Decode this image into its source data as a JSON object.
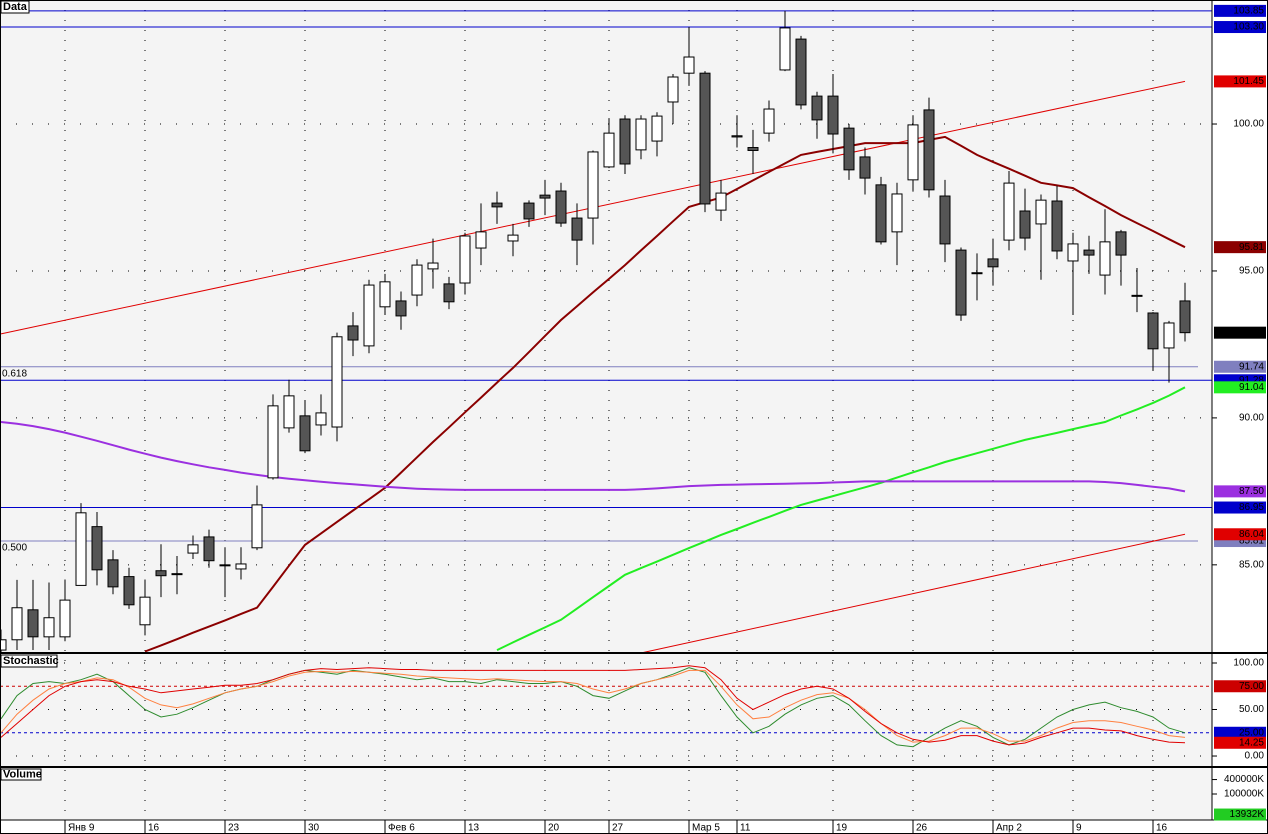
{
  "chart_data": [
    {
      "type": "candlestick",
      "title": "Data",
      "categories": [
        null,
        null,
        null,
        null,
        "Янв 9",
        null,
        null,
        null,
        null,
        "16",
        null,
        null,
        null,
        null,
        "23",
        null,
        null,
        null,
        null,
        "30",
        null,
        null,
        null,
        null,
        "Фев 6",
        null,
        null,
        null,
        null,
        "13",
        null,
        null,
        null,
        null,
        "20",
        null,
        null,
        null,
        "27",
        null,
        null,
        null,
        null,
        "Мар 5",
        null,
        null,
        "11",
        null,
        null,
        null,
        null,
        null,
        "19",
        null,
        null,
        null,
        null,
        "26",
        null,
        null,
        null,
        null,
        "Апр 2",
        null,
        null,
        null,
        null,
        "9",
        null,
        null,
        null,
        null,
        "16",
        null,
        null
      ],
      "open": [
        82.1,
        82.45,
        83.47,
        82.55,
        82.55,
        84.3,
        86.3,
        85.17,
        84.6,
        82.96,
        84.8,
        84.7,
        85.4,
        85.95,
        85.0,
        84.86,
        85.58,
        87.96,
        89.66,
        90.07,
        89.76,
        89.69,
        93.13,
        92.45,
        93.78,
        93.98,
        94.18,
        95.07,
        94.56,
        94.59,
        95.78,
        97.31,
        96.02,
        97.31,
        97.58,
        97.72,
        96.8,
        96.8,
        98.54,
        100.17,
        99.12,
        99.42,
        100.75,
        101.73,
        101.73,
        97.07,
        99.6,
        99.2,
        99.69,
        101.84,
        102.89,
        100.95,
        100.95,
        99.86,
        98.88,
        97.93,
        96.33,
        98.1,
        100.48,
        97.55,
        95.71,
        94.94,
        95.41,
        96.05,
        97.04,
        96.6,
        97.38,
        95.34,
        95.71,
        94.86,
        96.33,
        94.17,
        93.57,
        92.38,
        93.98
      ],
      "high": [
        82.8,
        84.49,
        84.49,
        84.4,
        84.5,
        87.1,
        86.8,
        85.5,
        84.9,
        84.5,
        85.7,
        85.3,
        86.0,
        86.2,
        85.6,
        85.6,
        87.7,
        90.8,
        91.3,
        90.6,
        90.8,
        92.9,
        93.6,
        94.7,
        94.9,
        94.3,
        95.4,
        96.1,
        94.8,
        96.3,
        97.3,
        97.7,
        96.6,
        97.4,
        98.1,
        98.0,
        97.3,
        99.1,
        100.2,
        100.3,
        100.3,
        100.4,
        101.7,
        103.3,
        101.8,
        98.1,
        100.3,
        99.8,
        100.8,
        103.85,
        103.0,
        101.1,
        101.7,
        100.0,
        99.2,
        98.2,
        98.0,
        100.3,
        100.9,
        98.1,
        95.8,
        95.6,
        96.1,
        98.4,
        97.8,
        97.6,
        97.9,
        96.3,
        96.2,
        97.1,
        96.4,
        95.1,
        93.6,
        93.3,
        94.6
      ],
      "low": [
        82.0,
        82.1,
        82.1,
        82.1,
        82.4,
        84.3,
        84.3,
        84.0,
        83.5,
        82.6,
        83.9,
        84.0,
        85.2,
        84.9,
        83.9,
        84.5,
        85.5,
        87.9,
        89.5,
        88.8,
        89.4,
        89.2,
        92.1,
        92.2,
        93.5,
        93.0,
        93.8,
        94.4,
        93.7,
        94.2,
        95.2,
        96.6,
        95.5,
        96.5,
        96.9,
        96.5,
        95.2,
        95.9,
        98.5,
        98.3,
        98.8,
        98.9,
        100.0,
        101.3,
        97.0,
        96.7,
        99.2,
        98.3,
        99.4,
        101.8,
        100.5,
        99.5,
        99.0,
        98.1,
        97.6,
        95.9,
        95.2,
        97.7,
        97.5,
        95.3,
        93.3,
        94.0,
        94.5,
        95.7,
        95.7,
        94.7,
        95.4,
        93.5,
        94.9,
        94.2,
        94.5,
        93.6,
        91.6,
        91.2,
        92.6
      ],
      "close": [
        82.45,
        83.54,
        82.55,
        83.2,
        83.8,
        86.77,
        84.83,
        84.25,
        83.64,
        83.9,
        84.63,
        84.7,
        85.68,
        85.14,
        85.0,
        85.03,
        87.04,
        90.41,
        90.75,
        88.88,
        90.17,
        92.76,
        92.65,
        94.52,
        94.63,
        93.47,
        95.2,
        95.27,
        93.95,
        96.19,
        96.33,
        97.18,
        96.22,
        96.77,
        97.48,
        96.63,
        96.05,
        99.05,
        99.69,
        98.64,
        100.17,
        100.27,
        101.6,
        102.28,
        97.28,
        97.65,
        99.56,
        99.1,
        100.51,
        103.27,
        100.65,
        100.14,
        99.66,
        98.44,
        98.16,
        95.99,
        97.62,
        99.97,
        97.76,
        95.92,
        93.5,
        94.94,
        95.14,
        97.99,
        96.12,
        97.41,
        95.68,
        95.92,
        95.54,
        95.99,
        95.54,
        94.15,
        92.35,
        93.23,
        92.9
      ],
      "close_label": "92.90",
      "up_color": "#ffffff",
      "down_color": "#555555",
      "ylim": [
        82.0,
        104.22
      ],
      "yticks": [
        {
          "value": 100,
          "label": "100.00"
        },
        {
          "value": 95,
          "label": "95.00"
        },
        {
          "value": 90,
          "label": "90.00"
        },
        {
          "value": 85,
          "label": "85.00"
        }
      ],
      "grid": true,
      "series": [
        {
          "color": "#8b0000",
          "last_label": "95.81",
          "values": [
            null,
            null,
            null,
            null,
            null,
            null,
            null,
            null,
            null,
            82.05,
            82.26,
            82.47,
            82.69,
            82.9,
            83.11,
            83.33,
            83.54,
            84.25,
            84.97,
            85.68,
            86.07,
            86.46,
            86.85,
            87.23,
            87.62,
            88.14,
            88.66,
            89.18,
            89.68,
            90.19,
            90.69,
            91.2,
            91.7,
            92.24,
            92.79,
            93.33,
            93.8,
            94.27,
            94.73,
            95.2,
            95.7,
            96.19,
            96.69,
            97.18,
            97.34,
            97.5,
            97.79,
            98.08,
            98.37,
            98.66,
            98.95,
            99.05,
            99.15,
            99.25,
            99.35,
            99.35,
            99.35,
            99.35,
            99.46,
            99.56,
            99.26,
            98.95,
            98.71,
            98.48,
            98.24,
            98.0,
            97.91,
            97.82,
            97.51,
            97.21,
            96.9,
            96.63,
            96.36,
            96.08,
            95.81
          ]
        },
        {
          "color": "#22ee22",
          "last_label": "91.04",
          "values": [
            null,
            null,
            null,
            null,
            null,
            null,
            null,
            null,
            null,
            null,
            null,
            null,
            null,
            null,
            null,
            null,
            null,
            null,
            null,
            null,
            null,
            null,
            null,
            null,
            null,
            null,
            null,
            null,
            null,
            null,
            null,
            82.1,
            82.36,
            82.62,
            82.87,
            83.13,
            83.51,
            83.9,
            84.28,
            84.66,
            84.89,
            85.11,
            85.34,
            85.57,
            85.79,
            86.02,
            86.22,
            86.43,
            86.63,
            86.84,
            87.04,
            87.19,
            87.34,
            87.49,
            87.64,
            87.79,
            87.97,
            88.15,
            88.32,
            88.5,
            88.65,
            88.8,
            88.95,
            89.1,
            89.25,
            89.37,
            89.49,
            89.62,
            89.74,
            89.86,
            90.08,
            90.29,
            90.51,
            90.76,
            91.04
          ]
        },
        {
          "color": "#9b30e0",
          "last_label": "87.50",
          "values": [
            89.86,
            89.8,
            89.72,
            89.62,
            89.5,
            89.36,
            89.22,
            89.07,
            88.92,
            88.78,
            88.65,
            88.53,
            88.42,
            88.32,
            88.23,
            88.14,
            88.06,
            87.99,
            87.93,
            87.88,
            87.83,
            87.78,
            87.74,
            87.7,
            87.66,
            87.62,
            87.59,
            87.57,
            87.56,
            87.55,
            87.55,
            87.55,
            87.55,
            87.55,
            87.55,
            87.55,
            87.55,
            87.55,
            87.55,
            87.55,
            87.57,
            87.6,
            87.64,
            87.68,
            87.7,
            87.72,
            87.73,
            87.74,
            87.75,
            87.76,
            87.77,
            87.78,
            87.8,
            87.82,
            87.84,
            87.84,
            87.84,
            87.84,
            87.84,
            87.84,
            87.84,
            87.84,
            87.84,
            87.84,
            87.84,
            87.84,
            87.84,
            87.84,
            87.84,
            87.82,
            87.78,
            87.72,
            87.66,
            87.6,
            87.5
          ]
        }
      ],
      "trend_lines": [
        {
          "color": "#e00000",
          "points": [
            [
              0,
              92.86
            ],
            [
              74,
              101.45
            ]
          ],
          "end_label": "101.45"
        },
        {
          "color": "#e00000",
          "points": [
            [
              40,
              82.0
            ],
            [
              74,
              86.04
            ]
          ],
          "end_label": "86.04"
        }
      ],
      "levels": [
        {
          "value": 103.85,
          "label": "103.85",
          "color": "#0000cc"
        },
        {
          "value": 103.3,
          "label": "103.30",
          "color": "#0000cc"
        },
        {
          "value": 91.28,
          "label": "91.28",
          "color": "#0000cc"
        },
        {
          "value": 86.95,
          "label": "86.95",
          "color": "#0000cc"
        }
      ],
      "fib_levels": [
        {
          "value": 91.74,
          "label": "91.74",
          "ratio": "0.618",
          "color": "#7f7fbf"
        },
        {
          "value": 85.81,
          "label": "85.81",
          "ratio": "0.500",
          "color": "#7f7fbf"
        }
      ]
    },
    {
      "type": "line",
      "title": "Stochastic",
      "ylim": [
        -11.8,
        110.75
      ],
      "yticks": [
        {
          "value": 100,
          "label": "100.00"
        },
        {
          "value": 50,
          "label": "50.00"
        },
        {
          "value": 0,
          "label": "0.00"
        }
      ],
      "levels": [
        {
          "value": 75,
          "label": "75.00",
          "color": "#cc0000"
        },
        {
          "value": 25,
          "label": "25.00",
          "color": "#0000cc"
        }
      ],
      "series": [
        {
          "color": "#2e8b2e",
          "values": [
            40,
            65,
            78,
            80,
            78,
            82,
            88,
            80,
            65,
            50,
            42,
            45,
            52,
            60,
            68,
            72,
            75,
            82,
            88,
            92,
            90,
            88,
            92,
            90,
            88,
            85,
            82,
            84,
            80,
            80,
            78,
            82,
            80,
            78,
            78,
            80,
            75,
            65,
            62,
            70,
            78,
            82,
            88,
            95,
            90,
            65,
            42,
            25,
            32,
            45,
            55,
            62,
            65,
            55,
            38,
            22,
            12,
            10,
            20,
            30,
            38,
            32,
            20,
            12,
            18,
            30,
            42,
            50,
            55,
            58,
            52,
            48,
            42,
            30,
            25
          ]
        },
        {
          "color": "#ff8040",
          "values": [
            25,
            45,
            60,
            72,
            78,
            80,
            84,
            82,
            74,
            62,
            55,
            52,
            56,
            62,
            68,
            72,
            75,
            80,
            86,
            90,
            91,
            90,
            91,
            90,
            89,
            88,
            86,
            85,
            84,
            83,
            82,
            83,
            82,
            81,
            80,
            80,
            78,
            72,
            68,
            72,
            78,
            82,
            86,
            92,
            92,
            75,
            55,
            40,
            42,
            52,
            60,
            66,
            68,
            62,
            50,
            35,
            22,
            15,
            16,
            22,
            30,
            30,
            24,
            16,
            16,
            22,
            30,
            36,
            38,
            38,
            36,
            32,
            28,
            22,
            20
          ]
        },
        {
          "color": "#e00000",
          "last_label": "14.25",
          "values": [
            20,
            35,
            50,
            65,
            75,
            80,
            82,
            80,
            75,
            72,
            68,
            70,
            72,
            74,
            76,
            76,
            78,
            82,
            88,
            92,
            94,
            93,
            94,
            95,
            94,
            93,
            93,
            92,
            92,
            92,
            92,
            92,
            92,
            92,
            92,
            92,
            92,
            92,
            92,
            92,
            93,
            94,
            95,
            97,
            95,
            82,
            62,
            50,
            58,
            66,
            72,
            75,
            72,
            62,
            48,
            35,
            25,
            18,
            15,
            17,
            22,
            22,
            16,
            12,
            14,
            20,
            25,
            30,
            30,
            28,
            27,
            22,
            18,
            15,
            14.25
          ]
        }
      ]
    },
    {
      "type": "volume",
      "title": "Volume",
      "log_scale": true,
      "ylim": [
        10000,
        1000000
      ],
      "yticks": [
        {
          "value": 400000,
          "label": "400000K"
        },
        {
          "value": 100000,
          "label": "100000K"
        }
      ],
      "last_value": 13932,
      "last_label": "13932K"
    }
  ]
}
